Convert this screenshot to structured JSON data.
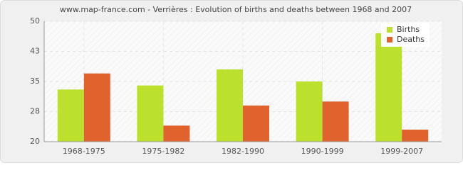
{
  "chart_data": {
    "type": "bar",
    "title": "www.map-france.com - Verrières : Evolution of births and deaths between 1968 and 2007",
    "categories": [
      "1968-1975",
      "1975-1982",
      "1982-1990",
      "1990-1999",
      "1999-2007"
    ],
    "series": [
      {
        "name": "Births",
        "color": "#bbe12e",
        "values": [
          33,
          34,
          38,
          35,
          47
        ]
      },
      {
        "name": "Deaths",
        "color": "#e0632e",
        "values": [
          37,
          24,
          29,
          30,
          23
        ]
      }
    ],
    "ylim": [
      20,
      50
    ],
    "yticks": [
      20,
      {
        "value": 27.5,
        "label": "28"
      },
      35,
      {
        "value": 42.5,
        "label": "43"
      },
      50
    ],
    "grid": true,
    "legend": "upper right"
  }
}
